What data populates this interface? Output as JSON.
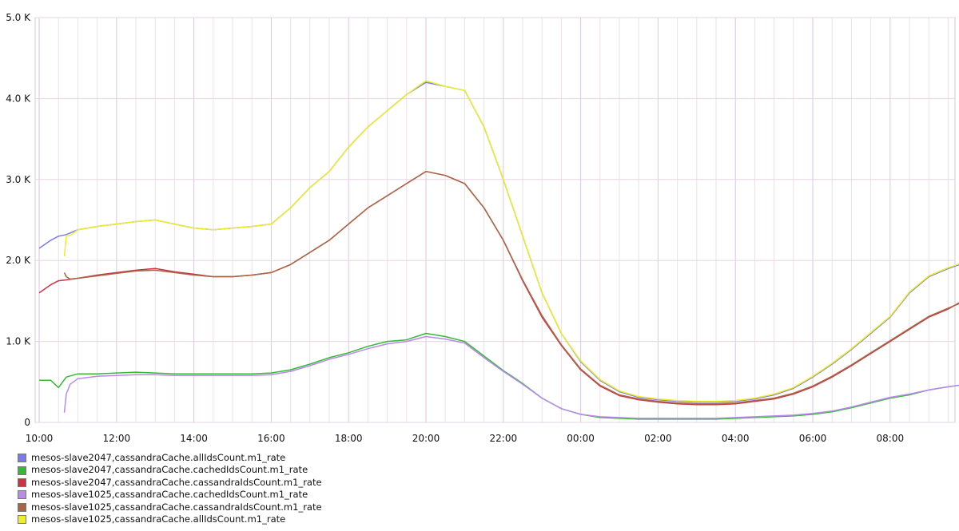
{
  "chart_data": {
    "type": "line",
    "title": "",
    "xlabel": "",
    "ylabel": "",
    "x_ticks": [
      "10:00",
      "12:00",
      "14:00",
      "16:00",
      "18:00",
      "20:00",
      "22:00",
      "00:00",
      "02:00",
      "04:00",
      "06:00",
      "08:00"
    ],
    "y_ticks": [
      "0",
      "1.0 K",
      "2.0 K",
      "3.0 K",
      "4.0 K",
      "5.0 K"
    ],
    "ylim": [
      0,
      5000
    ],
    "x_unit": "hours",
    "xlim": [
      0,
      23.8
    ],
    "grid": true,
    "legend_position": "bottom-left",
    "series": [
      {
        "name": "mesos-slave2047,cassandraCache.allIdsCount.m1_rate",
        "color": "#7b7bf0",
        "x": [
          0,
          0.3,
          0.5,
          0.7,
          1,
          1.5,
          2,
          2.5,
          3,
          3.5,
          4,
          4.5,
          5,
          5.5,
          6,
          6.5,
          7,
          7.5,
          8,
          8.5,
          9,
          9.5,
          10,
          10.5,
          11,
          11.5,
          12,
          12.5,
          13,
          13.5,
          14,
          14.5,
          15,
          15.5,
          16,
          16.5,
          17,
          17.5,
          18,
          18.5,
          19,
          19.5,
          20,
          20.5,
          21,
          21.5,
          22,
          22.5,
          23,
          23.5,
          23.8
        ],
        "y": [
          2150,
          2250,
          2300,
          2320,
          2380,
          2420,
          2450,
          2480,
          2500,
          2450,
          2400,
          2380,
          2400,
          2420,
          2450,
          2650,
          2900,
          3100,
          3400,
          3650,
          3850,
          4050,
          4200,
          4150,
          4100,
          3650,
          3000,
          2300,
          1600,
          1100,
          750,
          520,
          380,
          310,
          280,
          260,
          250,
          250,
          260,
          290,
          340,
          420,
          560,
          720,
          900,
          1100,
          1300,
          1600,
          1800,
          1900,
          1950
        ]
      },
      {
        "name": "mesos-slave2047,cassandraCache.cachedIdsCount.m1_rate",
        "color": "#33bb33",
        "x": [
          0,
          0.3,
          0.5,
          0.7,
          1,
          1.5,
          2,
          2.5,
          3,
          3.5,
          4,
          4.5,
          5,
          5.5,
          6,
          6.5,
          7,
          7.5,
          8,
          8.5,
          9,
          9.5,
          10,
          10.5,
          11,
          11.5,
          12,
          12.5,
          13,
          13.5,
          14,
          14.5,
          15,
          15.5,
          16,
          16.5,
          17,
          17.5,
          18,
          18.5,
          19,
          19.5,
          20,
          20.5,
          21,
          21.5,
          22,
          22.5,
          23,
          23.5,
          23.8
        ],
        "y": [
          520,
          520,
          430,
          560,
          600,
          600,
          610,
          620,
          610,
          600,
          600,
          600,
          600,
          600,
          610,
          650,
          720,
          800,
          860,
          940,
          1000,
          1020,
          1100,
          1060,
          1000,
          820,
          640,
          480,
          300,
          170,
          100,
          60,
          50,
          40,
          40,
          40,
          40,
          40,
          50,
          60,
          70,
          80,
          100,
          130,
          180,
          240,
          300,
          340,
          400,
          440,
          460
        ]
      },
      {
        "name": "mesos-slave2047,cassandraCache.cassandraIdsCount.m1_rate",
        "color": "#cc3344",
        "x": [
          0,
          0.3,
          0.5,
          0.7,
          1,
          1.5,
          2,
          2.5,
          3,
          3.5,
          4,
          4.5,
          5,
          5.5,
          6,
          6.5,
          7,
          7.5,
          8,
          8.5,
          9,
          9.5,
          10,
          10.5,
          11,
          11.5,
          12,
          12.5,
          13,
          13.5,
          14,
          14.5,
          15,
          15.5,
          16,
          16.5,
          17,
          17.5,
          18,
          18.5,
          19,
          19.5,
          20,
          20.5,
          21,
          21.5,
          22,
          22.5,
          23,
          23.5,
          23.8
        ],
        "y": [
          1600,
          1700,
          1750,
          1760,
          1780,
          1820,
          1850,
          1880,
          1900,
          1860,
          1830,
          1800,
          1800,
          1820,
          1850,
          1950,
          2100,
          2250,
          2450,
          2650,
          2800,
          2950,
          3100,
          3050,
          2950,
          2650,
          2250,
          1750,
          1300,
          950,
          650,
          450,
          330,
          280,
          250,
          230,
          220,
          220,
          230,
          260,
          290,
          350,
          440,
          560,
          700,
          850,
          1000,
          1150,
          1300,
          1400,
          1480
        ]
      },
      {
        "name": "mesos-slave1025,cassandraCache.cachedIdsCount.m1_rate",
        "color": "#bb88ee",
        "x": [
          0.65,
          0.7,
          0.8,
          1,
          1.5,
          2,
          2.5,
          3,
          3.5,
          4,
          4.5,
          5,
          5.5,
          6,
          6.5,
          7,
          7.5,
          8,
          8.5,
          9,
          9.5,
          10,
          10.5,
          11,
          11.5,
          12,
          12.5,
          13,
          13.5,
          14,
          14.5,
          15,
          15.5,
          16,
          16.5,
          17,
          17.5,
          18,
          18.5,
          19,
          19.5,
          20,
          20.5,
          21,
          21.5,
          22,
          22.5,
          23,
          23.5,
          23.8
        ],
        "y": [
          120,
          350,
          470,
          540,
          570,
          580,
          590,
          590,
          580,
          580,
          580,
          580,
          580,
          590,
          630,
          700,
          780,
          840,
          910,
          970,
          1000,
          1060,
          1030,
          980,
          800,
          630,
          470,
          300,
          170,
          100,
          70,
          60,
          50,
          50,
          50,
          50,
          50,
          60,
          70,
          80,
          90,
          110,
          140,
          190,
          250,
          310,
          350,
          400,
          440,
          460
        ]
      },
      {
        "name": "mesos-slave1025,cassandraCache.cassandraIdsCount.m1_rate",
        "color": "#aa6644",
        "x": [
          0.65,
          0.7,
          0.8,
          1,
          1.5,
          2,
          2.5,
          3,
          3.5,
          4,
          4.5,
          5,
          5.5,
          6,
          6.5,
          7,
          7.5,
          8,
          8.5,
          9,
          9.5,
          10,
          10.5,
          11,
          11.5,
          12,
          12.5,
          13,
          13.5,
          14,
          14.5,
          15,
          15.5,
          16,
          16.5,
          17,
          17.5,
          18,
          18.5,
          19,
          19.5,
          20,
          20.5,
          21,
          21.5,
          22,
          22.5,
          23,
          23.5,
          23.8
        ],
        "y": [
          1850,
          1800,
          1770,
          1780,
          1810,
          1840,
          1870,
          1880,
          1850,
          1820,
          1800,
          1800,
          1820,
          1850,
          1950,
          2100,
          2250,
          2450,
          2650,
          2800,
          2950,
          3100,
          3050,
          2950,
          2650,
          2250,
          1760,
          1320,
          960,
          660,
          460,
          340,
          290,
          260,
          240,
          230,
          230,
          240,
          270,
          300,
          360,
          450,
          570,
          710,
          860,
          1010,
          1160,
          1310,
          1410,
          1470
        ]
      },
      {
        "name": "mesos-slave1025,cassandraCache.allIdsCount.m1_rate",
        "color": "#eeee22",
        "x": [
          0.65,
          0.7,
          0.8,
          1,
          1.5,
          2,
          2.5,
          3,
          3.5,
          4,
          4.5,
          5,
          5.5,
          6,
          6.5,
          7,
          7.5,
          8,
          8.5,
          9,
          9.5,
          10,
          10.5,
          11,
          11.5,
          12,
          12.5,
          13,
          13.5,
          14,
          14.5,
          15,
          15.5,
          16,
          16.5,
          17,
          17.5,
          18,
          18.5,
          19,
          19.5,
          20,
          20.5,
          21,
          21.5,
          22,
          22.5,
          23,
          23.5,
          23.8
        ],
        "y": [
          2050,
          2300,
          2310,
          2380,
          2420,
          2450,
          2480,
          2500,
          2450,
          2400,
          2380,
          2400,
          2420,
          2450,
          2650,
          2900,
          3100,
          3400,
          3650,
          3850,
          4050,
          4220,
          4150,
          4100,
          3650,
          3000,
          2300,
          1600,
          1100,
          760,
          530,
          390,
          320,
          290,
          270,
          260,
          260,
          270,
          300,
          350,
          430,
          570,
          730,
          910,
          1110,
          1310,
          1610,
          1810,
          1910,
          1960
        ]
      }
    ]
  }
}
